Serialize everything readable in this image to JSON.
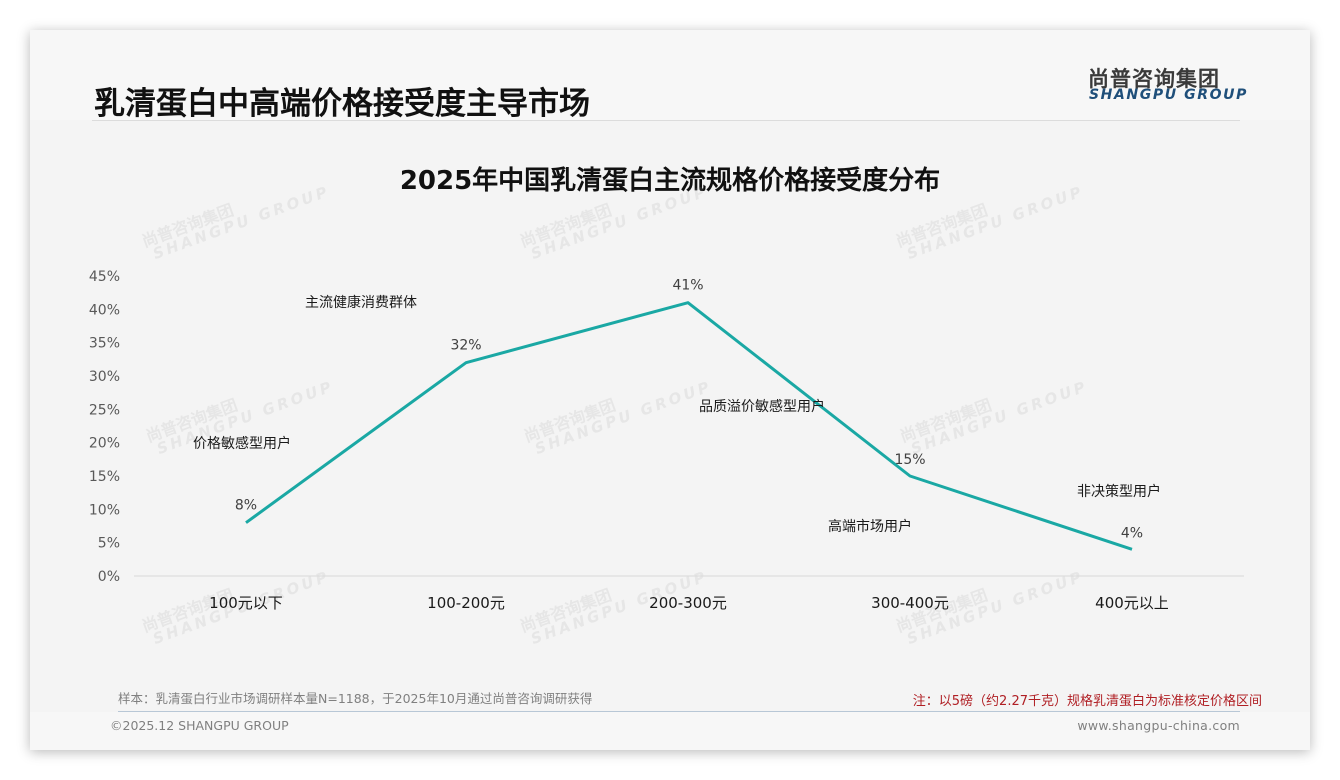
{
  "header": {
    "title": "乳清蛋白中高端价格接受度主导市场",
    "logo_cn": "尚普咨询集团",
    "logo_en": "SHANGPU GROUP"
  },
  "watermark": {
    "cn": "尚普咨询集团",
    "en": "SHANGPU GROUP"
  },
  "chart_data": {
    "type": "line",
    "title": "2025年中国乳清蛋白主流规格价格接受度分布",
    "categories": [
      "100元以下",
      "100-200元",
      "200-300元",
      "300-400元",
      "400元以上"
    ],
    "values": [
      8,
      32,
      41,
      15,
      4
    ],
    "value_labels": [
      "8%",
      "32%",
      "41%",
      "15%",
      "4%"
    ],
    "segment_labels": [
      "价格敏感型用户",
      "主流健康消费群体",
      "品质溢价敏感型用户",
      "高端市场用户",
      "非决策型用户"
    ],
    "xlabel": "",
    "ylabel": "",
    "ylim": [
      0,
      45
    ],
    "yticks": [
      "0%",
      "5%",
      "10%",
      "15%",
      "20%",
      "25%",
      "30%",
      "35%",
      "40%",
      "45%"
    ],
    "grid": false,
    "legend": "none",
    "line_color": "#1aa8a4"
  },
  "footer": {
    "sample_note": "样本：乳清蛋白行业市场调研样本量N=1188，于2025年10月通过尚普咨询调研获得",
    "red_note": "注：以5磅（约2.27千克）规格乳清蛋白为标准核定价格区间",
    "copyright": "©2025.12 SHANGPU GROUP",
    "website": "www.shangpu-china.com"
  }
}
